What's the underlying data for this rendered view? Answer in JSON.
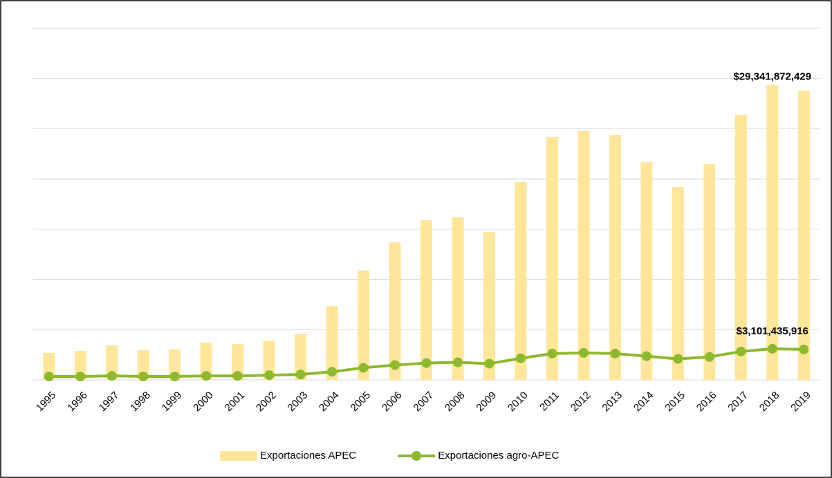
{
  "chart_data": {
    "type": "bar",
    "categories": [
      "1995",
      "1996",
      "1997",
      "1998",
      "1999",
      "2000",
      "2001",
      "2002",
      "2003",
      "2004",
      "2005",
      "2006",
      "2007",
      "2008",
      "2009",
      "2010",
      "2011",
      "2012",
      "2013",
      "2014",
      "2015",
      "2016",
      "2017",
      "2018",
      "2019"
    ],
    "series": [
      {
        "name": "Exportaciones APEC",
        "type": "bar",
        "color": "#ffe699",
        "values": [
          2690000000,
          2890000000,
          3430000000,
          2960000000,
          3030000000,
          3700000000,
          3570000000,
          3900000000,
          4580000000,
          7340000000,
          10900000000,
          13700000000,
          15900000000,
          16200000000,
          14700000000,
          19700000000,
          24200000000,
          24800000000,
          24400000000,
          21700000000,
          19200000000,
          21500000000,
          26400000000,
          29341872429,
          28800000000
        ],
        "value_labels": [
          null,
          null,
          null,
          null,
          null,
          null,
          null,
          null,
          null,
          null,
          null,
          null,
          null,
          null,
          null,
          null,
          null,
          null,
          null,
          null,
          null,
          null,
          null,
          "$29,341,872,429",
          null
        ]
      },
      {
        "name": "Exportaciones agro-APEC",
        "type": "line",
        "color": "#8db92e",
        "values": [
          340000000,
          340000000,
          400000000,
          340000000,
          340000000,
          400000000,
          400000000,
          470000000,
          540000000,
          810000000,
          1210000000,
          1480000000,
          1680000000,
          1750000000,
          1620000000,
          2150000000,
          2620000000,
          2690000000,
          2620000000,
          2360000000,
          2090000000,
          2290000000,
          2830000000,
          3101435916,
          3030000000
        ],
        "value_labels": [
          null,
          null,
          null,
          null,
          null,
          null,
          null,
          null,
          null,
          null,
          null,
          null,
          null,
          null,
          null,
          null,
          null,
          null,
          null,
          null,
          null,
          null,
          null,
          "$3,101,435,916",
          null
        ]
      }
    ],
    "ylim": [
      0,
      35000000000
    ],
    "yticks": [
      0,
      5000000000,
      10000000000,
      15000000000,
      20000000000,
      25000000000,
      30000000000,
      35000000000
    ],
    "grid": true,
    "legend": "bottom"
  }
}
